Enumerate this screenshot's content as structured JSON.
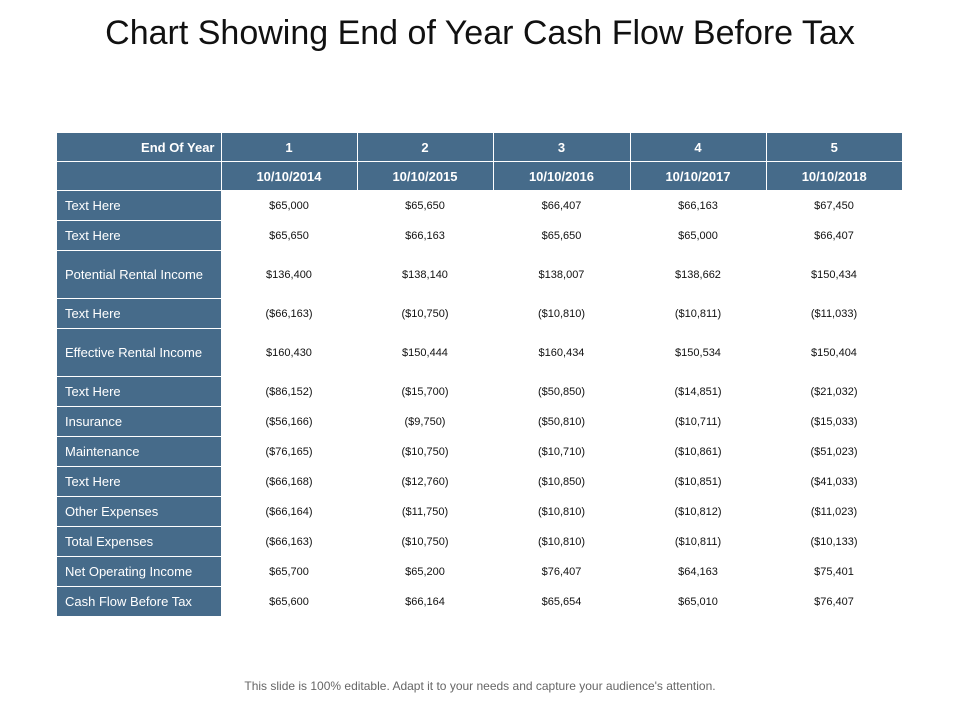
{
  "title": "Chart Showing End of Year Cash Flow Before Tax",
  "footer": "This slide is 100% editable. Adapt it to your needs and capture your audience's attention.",
  "table": {
    "corner_label": "End Of Year",
    "years": [
      "1",
      "2",
      "3",
      "4",
      "5"
    ],
    "dates": [
      "10/10/2014",
      "10/10/2015",
      "10/10/2016",
      "10/10/2017",
      "10/10/2018"
    ],
    "rows": [
      {
        "label": "Text Here",
        "values": [
          "$65,000",
          "$65,650",
          "$66,407",
          "$66,163",
          "$67,450"
        ]
      },
      {
        "label": "Text Here",
        "values": [
          "$65,650",
          "$66,163",
          "$65,650",
          "$65,000",
          "$66,407"
        ]
      },
      {
        "label": "Potential Rental Income",
        "values": [
          "$136,400",
          "$138,140",
          "$138,007",
          "$138,662",
          "$150,434"
        ]
      },
      {
        "label": "Text Here",
        "values": [
          "($66,163)",
          "($10,750)",
          "($10,810)",
          "($10,811)",
          "($11,033)"
        ]
      },
      {
        "label": "Effective Rental Income",
        "values": [
          "$160,430",
          "$150,444",
          "$160,434",
          "$150,534",
          "$150,404"
        ]
      },
      {
        "label": "Text Here",
        "values": [
          "($86,152)",
          "($15,700)",
          "($50,850)",
          "($14,851)",
          "($21,032)"
        ]
      },
      {
        "label": "Insurance",
        "values": [
          "($56,166)",
          "($9,750)",
          "($50,810)",
          "($10,711)",
          "($15,033)"
        ]
      },
      {
        "label": "Maintenance",
        "values": [
          "($76,165)",
          "($10,750)",
          "($10,710)",
          "($10,861)",
          "($51,023)"
        ]
      },
      {
        "label": "Text Here",
        "values": [
          "($66,168)",
          "($12,760)",
          "($10,850)",
          "($10,851)",
          "($41,033)"
        ]
      },
      {
        "label": "Other Expenses",
        "values": [
          "($66,164)",
          "($11,750)",
          "($10,810)",
          "($10,812)",
          "($11,023)"
        ]
      },
      {
        "label": "Total Expenses",
        "values": [
          "($66,163)",
          "($10,750)",
          "($10,810)",
          "($10,811)",
          "($10,133)"
        ]
      },
      {
        "label": "Net Operating Income",
        "values": [
          "$65,700",
          "$65,200",
          "$76,407",
          "$64,163",
          "$75,401"
        ]
      },
      {
        "label": "Cash Flow Before Tax",
        "values": [
          "$65,600",
          "$66,164",
          "$65,654",
          "$65,010",
          "$76,407"
        ]
      }
    ]
  }
}
